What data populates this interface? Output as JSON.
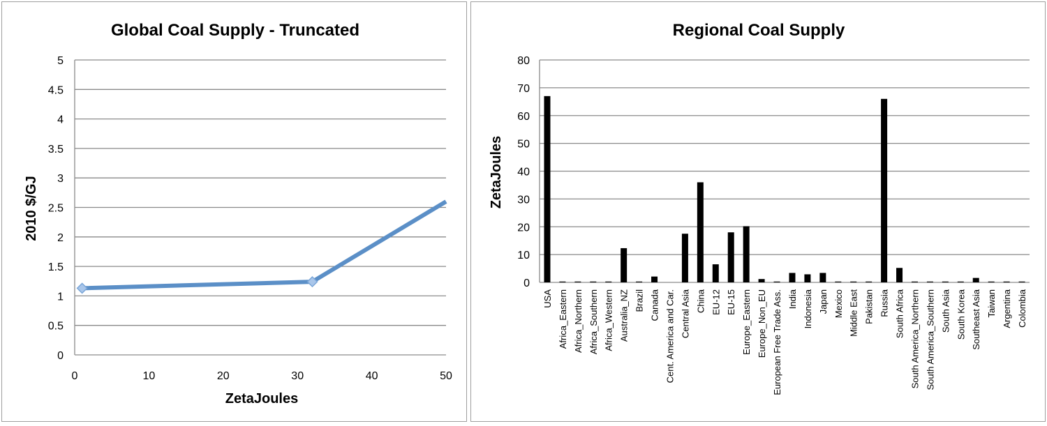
{
  "chart_data": [
    {
      "type": "line",
      "title": "Global Coal Supply - Truncated",
      "xlabel": "ZetaJoules",
      "ylabel": "2010 $/GJ",
      "xlim": [
        0,
        50
      ],
      "ylim": [
        0,
        5
      ],
      "x_ticks": [
        "0",
        "10",
        "20",
        "30",
        "40",
        "50"
      ],
      "y_ticks": [
        "0",
        "0.5",
        "1",
        "1.5",
        "2",
        "2.5",
        "3",
        "3.5",
        "4",
        "4.5",
        "5"
      ],
      "grid": true,
      "series": [
        {
          "color": "#5b8fc7",
          "x": [
            1,
            32,
            50
          ],
          "y": [
            1.13,
            1.24,
            2.6
          ],
          "markers": [
            true,
            true,
            false
          ]
        }
      ]
    },
    {
      "type": "bar",
      "title": "Regional Coal Supply",
      "xlabel": "",
      "ylabel": "ZetaJoules",
      "ylim": [
        0,
        80
      ],
      "y_ticks": [
        "0",
        "10",
        "20",
        "30",
        "40",
        "50",
        "60",
        "70",
        "80"
      ],
      "grid": true,
      "bar_color": "#000000",
      "categories": [
        "USA",
        "Africa_Eastern",
        "Africa_Northern",
        "Africa_Southern",
        "Africa_Western",
        "Australia_NZ",
        "Brazil",
        "Canada",
        "Cent. America and Car.",
        "Central Asia",
        "China",
        "EU-12",
        "EU-15",
        "Europe_Eastern",
        "Europe_Non_EU",
        "European Free Trade Ass.",
        "India",
        "Indonesia",
        "Japan",
        "Mexico",
        "Middle East",
        "Pakistan",
        "Russia",
        "South Africa",
        "South America_Northern",
        "South America_Southern",
        "South Asia",
        "South Korea",
        "Southeast Asia",
        "Taiwan",
        "Argentina",
        "Colombia"
      ],
      "values": [
        67,
        0.3,
        0.3,
        0.3,
        0.3,
        12.3,
        0.3,
        2.1,
        0,
        17.5,
        36,
        6.5,
        18,
        20.2,
        1.2,
        0.3,
        3.4,
        2.9,
        3.4,
        0.3,
        0.3,
        0.3,
        66,
        5.2,
        0.3,
        0.3,
        0.3,
        0.3,
        1.6,
        0.3,
        0.3,
        0.3
      ]
    }
  ]
}
